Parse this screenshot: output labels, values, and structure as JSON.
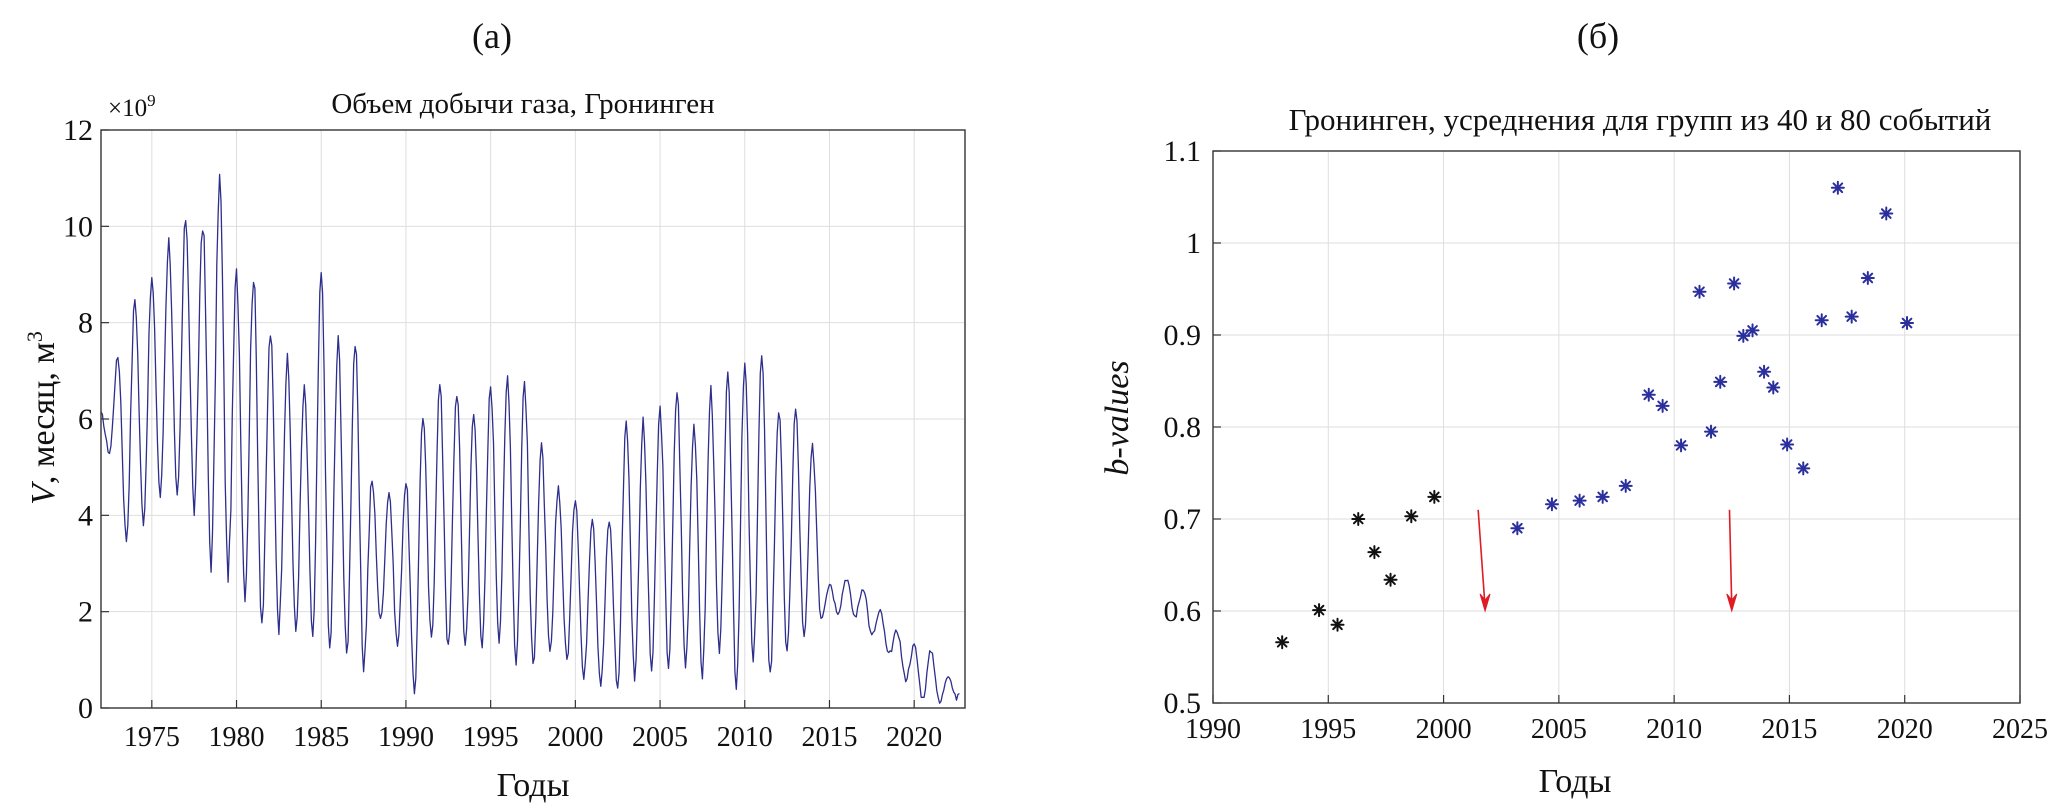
{
  "chart_data": [
    {
      "type": "line",
      "panel_label": "(а)",
      "title": "Объем добычи газа, Гронинген",
      "xlabel": "Годы",
      "ylabel_main": "V",
      "ylabel_rest": ", месяц, м",
      "ylabel_sup": "3",
      "y_multiplier_base": "×10",
      "y_multiplier_exp": "9",
      "xlim": [
        1972,
        2023
      ],
      "ylim": [
        0,
        12
      ],
      "xticks": [
        1975,
        1980,
        1985,
        1990,
        1995,
        2000,
        2005,
        2010,
        2015,
        2020
      ],
      "yticks": [
        0,
        2,
        4,
        6,
        8,
        10,
        12
      ],
      "grid": true,
      "line_color": "#2e2e8c",
      "series": [
        {
          "resolution": "monthly (approximate envelope, seasonal cycle)",
          "yearly_winter_peaks": [
            [
              1972,
              6.1
            ],
            [
              1973,
              7.3
            ],
            [
              1974,
              8.5
            ],
            [
              1975,
              8.9
            ],
            [
              1976,
              9.7
            ],
            [
              1977,
              10.2
            ],
            [
              1978,
              10.1
            ],
            [
              1979,
              11.0
            ],
            [
              1980,
              9.0
            ],
            [
              1981,
              9.0
            ],
            [
              1982,
              7.8
            ],
            [
              1983,
              7.2
            ],
            [
              1984,
              6.6
            ],
            [
              1985,
              9.0
            ],
            [
              1986,
              7.6
            ],
            [
              1987,
              7.6
            ],
            [
              1988,
              4.7
            ],
            [
              1989,
              4.5
            ],
            [
              1990,
              4.7
            ],
            [
              1991,
              6.1
            ],
            [
              1992,
              6.7
            ],
            [
              1993,
              6.6
            ],
            [
              1994,
              6.1
            ],
            [
              1995,
              6.7
            ],
            [
              1996,
              6.9
            ],
            [
              1997,
              6.8
            ],
            [
              1998,
              5.4
            ],
            [
              1999,
              4.6
            ],
            [
              2000,
              4.4
            ],
            [
              2001,
              4.0
            ],
            [
              2002,
              3.9
            ],
            [
              2003,
              6.0
            ],
            [
              2004,
              5.9
            ],
            [
              2005,
              6.2
            ],
            [
              2006,
              6.6
            ],
            [
              2007,
              5.9
            ],
            [
              2008,
              6.6
            ],
            [
              2009,
              6.8
            ],
            [
              2010,
              7.1
            ],
            [
              2011,
              7.3
            ],
            [
              2012,
              6.2
            ],
            [
              2013,
              6.2
            ],
            [
              2014,
              5.4
            ],
            [
              2015,
              2.6
            ],
            [
              2016,
              2.7
            ],
            [
              2017,
              2.5
            ],
            [
              2018,
              2.0
            ],
            [
              2019,
              1.6
            ],
            [
              2020,
              1.3
            ],
            [
              2021,
              1.2
            ],
            [
              2022,
              0.7
            ]
          ],
          "yearly_summer_troughs": [
            [
              1972,
              5.3
            ],
            [
              1973,
              3.5
            ],
            [
              1974,
              3.9
            ],
            [
              1975,
              4.4
            ],
            [
              1976,
              4.3
            ],
            [
              1977,
              4.1
            ],
            [
              1978,
              3.0
            ],
            [
              1979,
              2.8
            ],
            [
              1980,
              2.4
            ],
            [
              1981,
              1.8
            ],
            [
              1982,
              1.7
            ],
            [
              1983,
              1.6
            ],
            [
              1984,
              1.5
            ],
            [
              1985,
              1.2
            ],
            [
              1986,
              1.1
            ],
            [
              1987,
              0.9
            ],
            [
              1988,
              1.8
            ],
            [
              1989,
              1.3
            ],
            [
              1990,
              0.3
            ],
            [
              1991,
              1.4
            ],
            [
              1992,
              1.2
            ],
            [
              1993,
              1.3
            ],
            [
              1994,
              1.3
            ],
            [
              1995,
              1.5
            ],
            [
              1996,
              1.0
            ],
            [
              1997,
              0.9
            ],
            [
              1998,
              1.1
            ],
            [
              1999,
              1.0
            ],
            [
              2000,
              0.6
            ],
            [
              2001,
              0.5
            ],
            [
              2002,
              0.4
            ],
            [
              2003,
              0.7
            ],
            [
              2004,
              0.8
            ],
            [
              2005,
              0.9
            ],
            [
              2006,
              0.9
            ],
            [
              2007,
              0.7
            ],
            [
              2008,
              1.1
            ],
            [
              2009,
              0.5
            ],
            [
              2010,
              0.9
            ],
            [
              2011,
              0.7
            ],
            [
              2012,
              1.1
            ],
            [
              2013,
              1.4
            ],
            [
              2014,
              1.9
            ],
            [
              2015,
              2.0
            ],
            [
              2016,
              1.9
            ],
            [
              2017,
              1.5
            ],
            [
              2018,
              1.1
            ],
            [
              2019,
              0.6
            ],
            [
              2020,
              0.2
            ],
            [
              2021,
              0.1
            ],
            [
              2022,
              0.2
            ]
          ]
        }
      ]
    },
    {
      "type": "scatter",
      "panel_label": "(б)",
      "title": "Гронинген, усреднения для групп из 40 и 80 событий",
      "xlabel": "Годы",
      "ylabel": "b-values",
      "xlim": [
        1990,
        2025
      ],
      "ylim": [
        0.5,
        1.1
      ],
      "xticks": [
        1990,
        1995,
        2000,
        2005,
        2010,
        2015,
        2020,
        2025
      ],
      "yticks": [
        0.5,
        0.6,
        0.7,
        0.8,
        0.9,
        1.0,
        1.1
      ],
      "ytick_labels": [
        "0.5",
        "0.6",
        "0.7",
        "0.8",
        "0.9",
        "1",
        "1.1"
      ],
      "grid": true,
      "series": [
        {
          "marker": "asterisk",
          "color": "#111111",
          "points": [
            [
              1993.0,
              0.566
            ],
            [
              1994.6,
              0.601
            ],
            [
              1995.4,
              0.585
            ],
            [
              1996.3,
              0.7
            ],
            [
              1997.0,
              0.664
            ],
            [
              1997.7,
              0.634
            ],
            [
              1998.6,
              0.703
            ],
            [
              1999.6,
              0.724
            ]
          ]
        },
        {
          "marker": "asterisk",
          "color": "#2b2f9c",
          "points": [
            [
              2003.2,
              0.69
            ],
            [
              2004.7,
              0.716
            ],
            [
              2005.9,
              0.72
            ],
            [
              2006.9,
              0.724
            ],
            [
              2007.9,
              0.736
            ],
            [
              2008.9,
              0.835
            ],
            [
              2009.5,
              0.823
            ],
            [
              2010.3,
              0.78
            ],
            [
              2011.1,
              0.947
            ],
            [
              2011.6,
              0.795
            ],
            [
              2012.0,
              0.849
            ],
            [
              2012.6,
              0.956
            ],
            [
              2013.0,
              0.899
            ],
            [
              2013.4,
              0.905
            ],
            [
              2013.9,
              0.86
            ],
            [
              2014.3,
              0.843
            ],
            [
              2014.9,
              0.781
            ],
            [
              2015.6,
              0.755
            ],
            [
              2016.4,
              0.916
            ],
            [
              2017.1,
              1.06
            ],
            [
              2017.7,
              0.92
            ],
            [
              2018.4,
              0.962
            ],
            [
              2019.2,
              1.032
            ],
            [
              2020.1,
              0.913
            ]
          ]
        }
      ],
      "arrows": [
        {
          "color": "#e01b24",
          "from": [
            2001.5,
            0.71
          ],
          "to": [
            2001.8,
            0.6
          ]
        },
        {
          "color": "#e01b24",
          "from": [
            2012.4,
            0.71
          ],
          "to": [
            2012.5,
            0.6
          ]
        }
      ]
    }
  ]
}
